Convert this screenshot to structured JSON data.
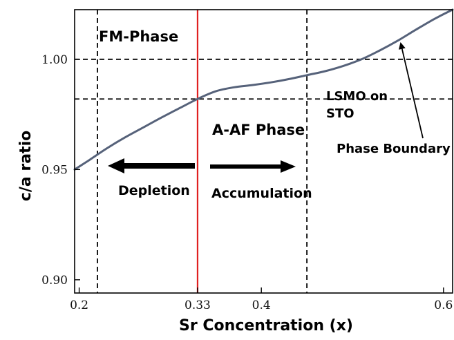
{
  "chart_data": {
    "type": "line",
    "xlabel": "Sr  Concentration (x)",
    "ylabel": "c/a ratio",
    "xlim": [
      0.195,
      0.61
    ],
    "ylim": [
      0.894,
      1.0225
    ],
    "x_ticks": [
      {
        "value": 0.2,
        "label": "0.2"
      },
      {
        "value": 0.33,
        "label": "0.33"
      },
      {
        "value": 0.4,
        "label": "0.4"
      },
      {
        "value": 0.6,
        "label": "0.6"
      }
    ],
    "y_ticks": [
      {
        "value": 0.9,
        "label": "0.90"
      },
      {
        "value": 0.95,
        "label": "0.95"
      },
      {
        "value": 1.0,
        "label": "1.00"
      }
    ],
    "series": [
      {
        "color": "#56627a",
        "x": [
          0.195,
          0.21,
          0.23,
          0.25,
          0.27,
          0.29,
          0.31,
          0.33,
          0.35,
          0.37,
          0.39,
          0.41,
          0.43,
          0.45,
          0.47,
          0.49,
          0.51,
          0.53,
          0.55,
          0.57,
          0.59,
          0.61
        ],
        "y": [
          0.95,
          0.954,
          0.9595,
          0.9645,
          0.969,
          0.9735,
          0.9778,
          0.982,
          0.9855,
          0.9873,
          0.9883,
          0.9895,
          0.991,
          0.9928,
          0.9946,
          0.997,
          1.0,
          1.004,
          1.0085,
          1.0135,
          1.0183,
          1.0225
        ]
      }
    ],
    "reference_lines": [
      {
        "orientation": "horizontal",
        "value": 1.0,
        "style": "dashed",
        "color": "#000000"
      },
      {
        "orientation": "horizontal",
        "value": 0.982,
        "style": "dashed",
        "color": "#000000"
      },
      {
        "orientation": "vertical",
        "value": 0.22,
        "style": "dashed",
        "color": "#000000"
      },
      {
        "orientation": "vertical",
        "value": 0.33,
        "style": "solid",
        "color": "#e02020"
      },
      {
        "orientation": "vertical",
        "value": 0.45,
        "style": "dashed",
        "color": "#000000"
      }
    ],
    "annotations": {
      "fm_phase": "FM-Phase",
      "aaf_phase": "A-AF Phase",
      "lsmo_line1": "LSMO on",
      "lsmo_line2": "STO",
      "phase_boundary": "Phase Boundary",
      "depletion": "Depletion",
      "accumulation": "Accumulation"
    }
  }
}
